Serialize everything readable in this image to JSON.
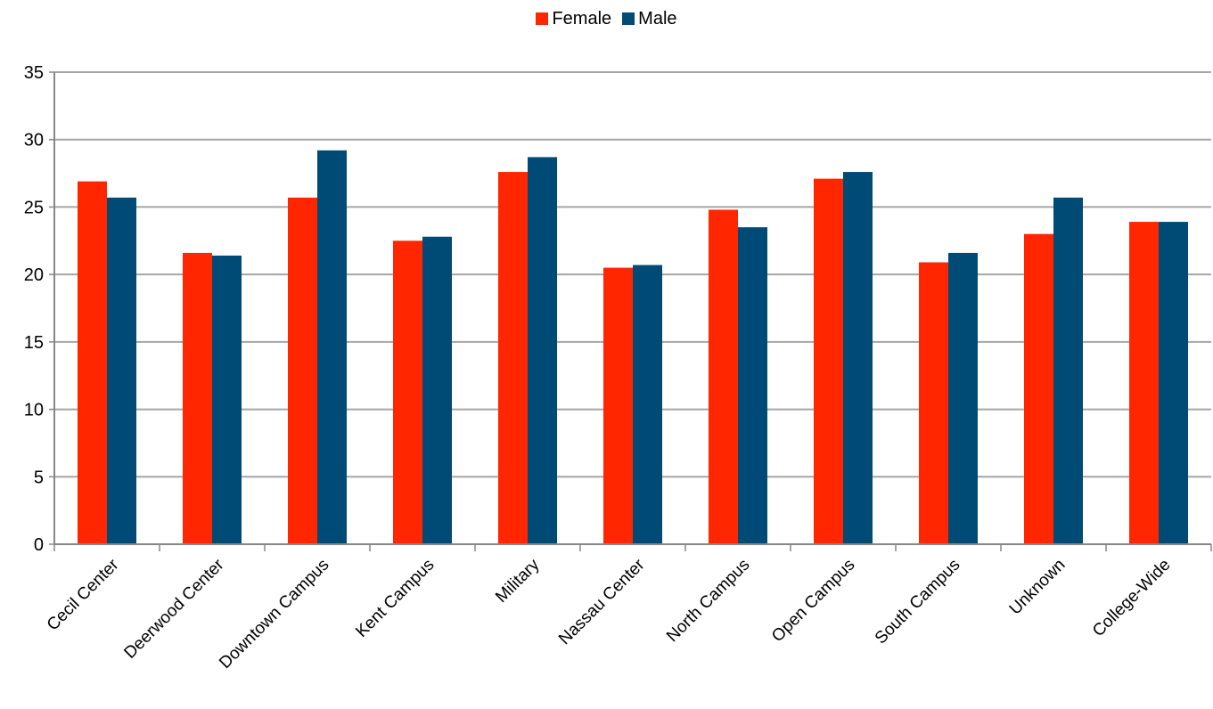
{
  "chart_data": {
    "type": "bar",
    "title": "",
    "xlabel": "",
    "ylabel": "",
    "categories": [
      "Cecil Center",
      "Deerwood Center",
      "Downtown Campus",
      "Kent Campus",
      "Military",
      "Nassau Center",
      "North Campus",
      "Open Campus",
      "South Campus",
      "Unknown",
      "College-Wide"
    ],
    "series": [
      {
        "name": "Female",
        "color": "#ff2600",
        "values": [
          26.9,
          21.6,
          25.7,
          22.5,
          27.6,
          20.5,
          24.8,
          27.1,
          20.9,
          23.0,
          23.9
        ]
      },
      {
        "name": "Male",
        "color": "#004a76",
        "values": [
          25.7,
          21.4,
          29.2,
          22.8,
          28.7,
          20.7,
          23.5,
          27.6,
          21.6,
          25.7,
          23.9
        ]
      }
    ],
    "ylim": [
      0,
      35
    ],
    "yticks": [
      0,
      5,
      10,
      15,
      20,
      25,
      30,
      35
    ],
    "grid": true,
    "legend_position": "top-center",
    "grid_color": "#a6a6a6",
    "axis_color": "#878787"
  }
}
